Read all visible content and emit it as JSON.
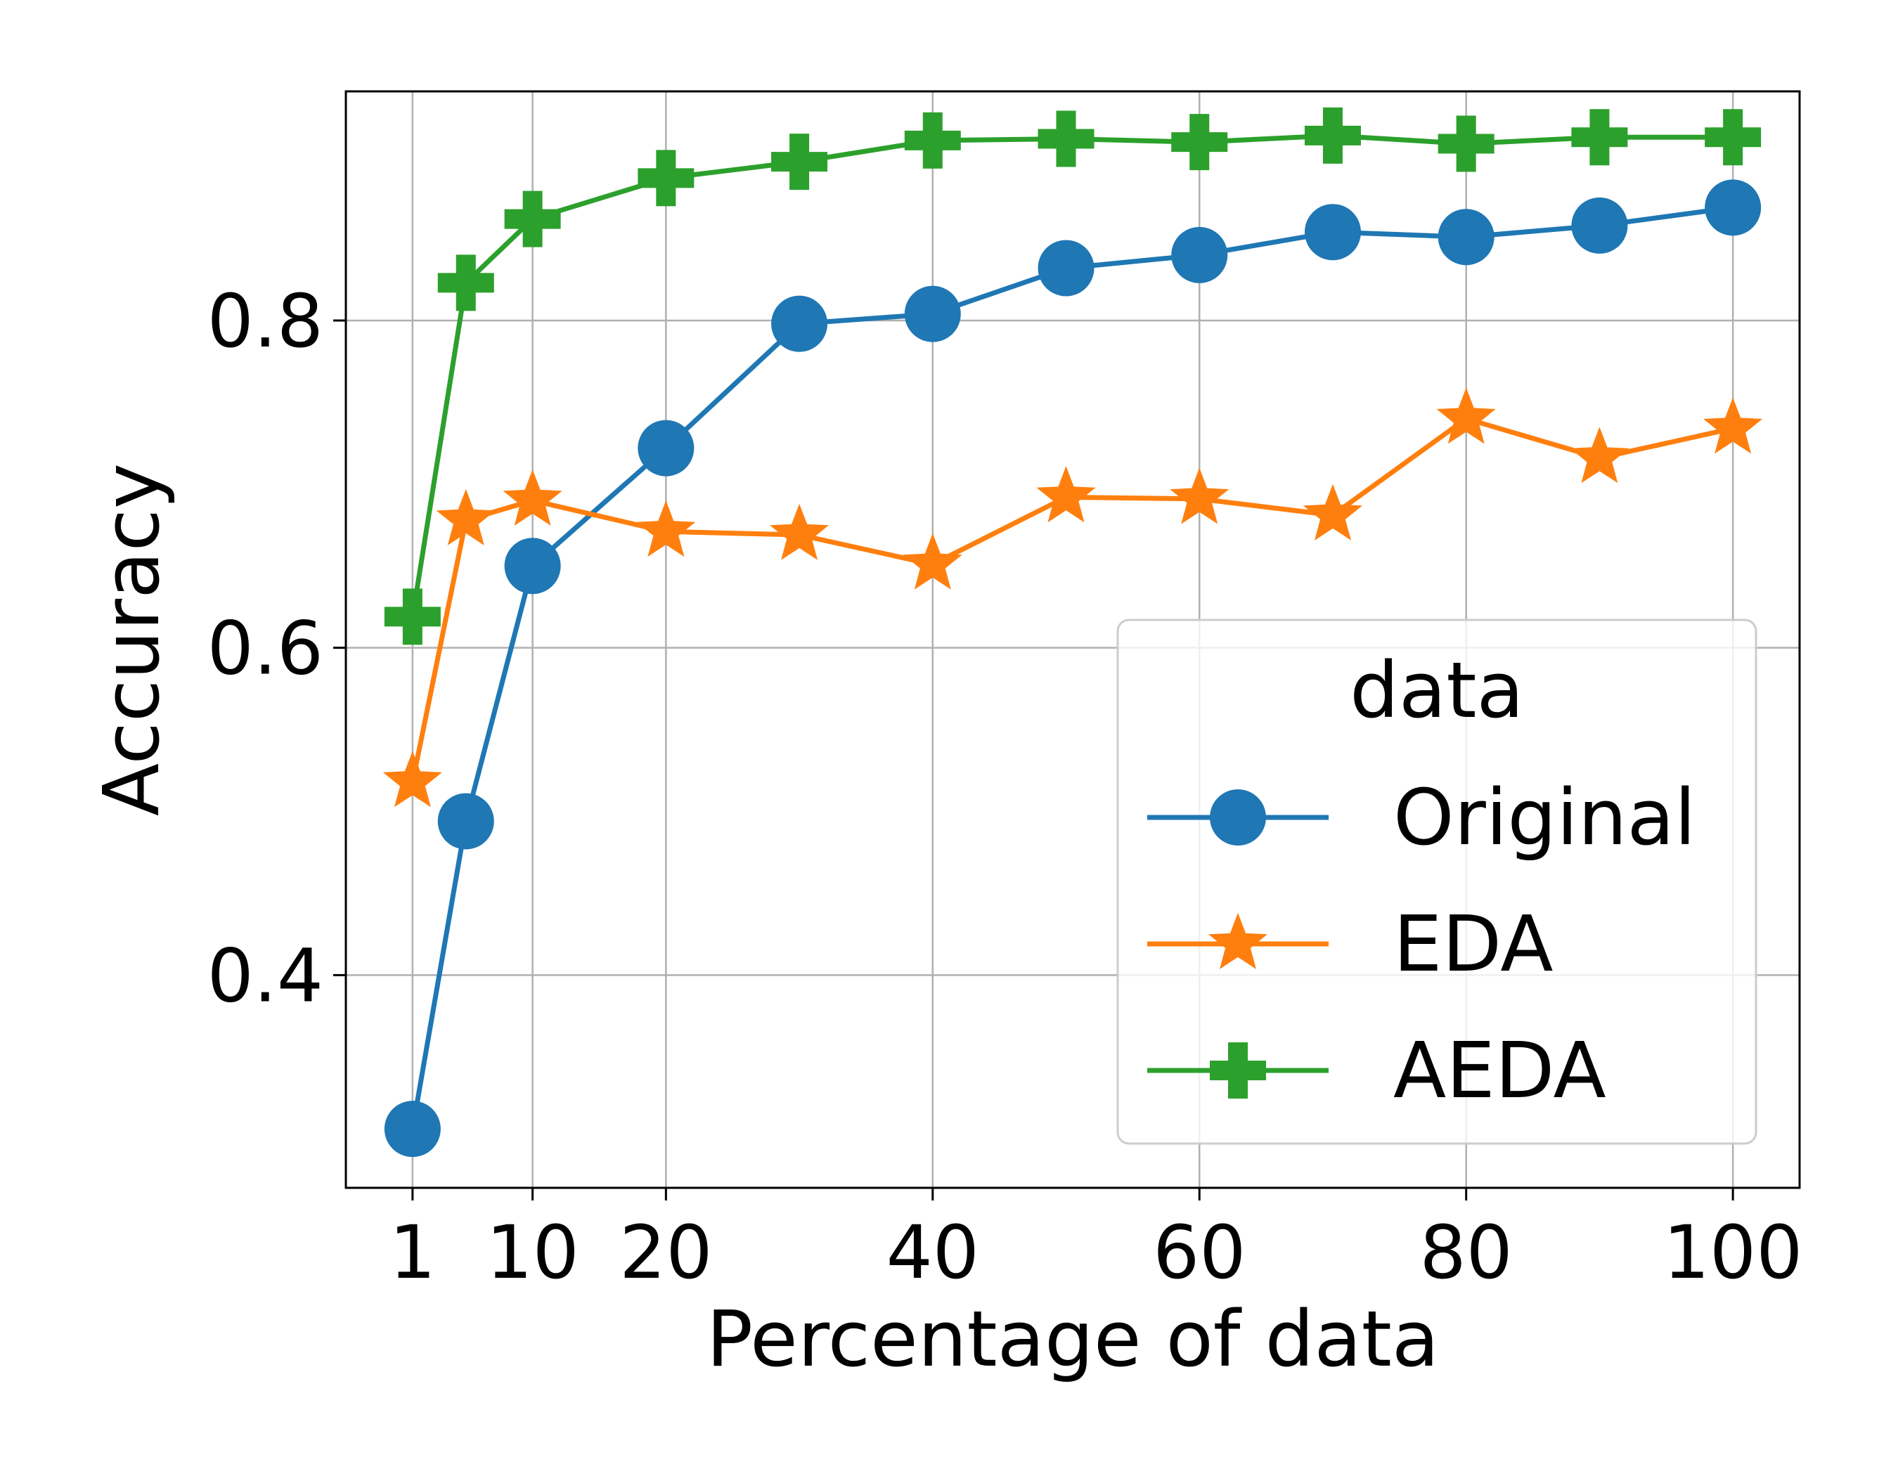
{
  "chart_data": {
    "type": "line",
    "title": "",
    "xlabel": "Percentage of data",
    "ylabel": "Accuracy",
    "xlim": [
      -4,
      105
    ],
    "ylim": [
      0.27,
      0.94
    ],
    "xticks": [
      1,
      10,
      20,
      40,
      60,
      80,
      100
    ],
    "xtick_labels": [
      "1",
      "10",
      "20",
      "40",
      "60",
      "80",
      "100"
    ],
    "yticks": [
      0.4,
      0.6,
      0.8
    ],
    "ytick_labels": [
      "0.4",
      "0.6",
      "0.8"
    ],
    "grid": true,
    "x": [
      1,
      5,
      10,
      20,
      30,
      40,
      50,
      60,
      70,
      80,
      90,
      100
    ],
    "series": [
      {
        "name": "Original",
        "marker": "circle",
        "color": "#1f77b4",
        "values": [
          0.306,
          0.494,
          0.65,
          0.722,
          0.798,
          0.804,
          0.832,
          0.84,
          0.854,
          0.851,
          0.858,
          0.869
        ]
      },
      {
        "name": "EDA",
        "marker": "star",
        "color": "#ff7f0e",
        "values": [
          0.518,
          0.678,
          0.69,
          0.671,
          0.669,
          0.651,
          0.692,
          0.691,
          0.681,
          0.74,
          0.716,
          0.734
        ]
      },
      {
        "name": "AEDA",
        "marker": "plus",
        "color": "#2ca02c",
        "values": [
          0.619,
          0.823,
          0.862,
          0.887,
          0.897,
          0.91,
          0.911,
          0.909,
          0.913,
          0.908,
          0.912,
          0.912
        ]
      }
    ],
    "legend": {
      "title": "data",
      "placement": "lower-right"
    }
  }
}
